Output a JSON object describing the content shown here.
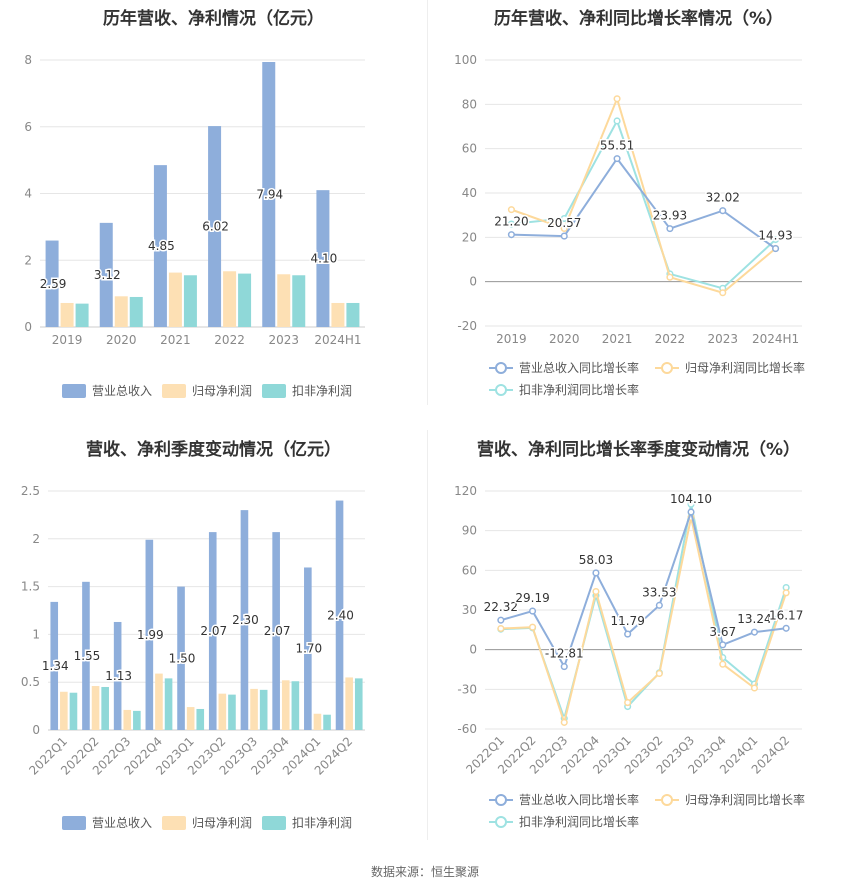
{
  "source": "数据来源：恒生聚源",
  "charts": [
    {
      "type": "bar",
      "title": "历年营收、净利情况（亿元）",
      "categories": [
        "2019",
        "2020",
        "2021",
        "2022",
        "2023",
        "2024H1"
      ],
      "ylim": [
        0,
        8
      ],
      "yticks": [
        0,
        2,
        4,
        6,
        8
      ],
      "series": [
        {
          "name": "营业总收入",
          "color": "#8eaedb",
          "values": [
            2.59,
            3.12,
            4.85,
            6.02,
            7.94,
            4.1
          ],
          "labels": [
            "2.59",
            "3.12",
            "4.85",
            "6.02",
            "7.94",
            "4.10"
          ]
        },
        {
          "name": "归母净利润",
          "color": "#fde0b4",
          "values": [
            0.72,
            0.92,
            1.63,
            1.67,
            1.58,
            0.72
          ]
        },
        {
          "name": "扣非净利润",
          "color": "#8fd8d8",
          "values": [
            0.7,
            0.9,
            1.55,
            1.6,
            1.55,
            0.72
          ]
        }
      ],
      "legend_position": "bottom"
    },
    {
      "type": "line",
      "title": "历年营收、净利同比增长率情况（%）",
      "categories": [
        "2019",
        "2020",
        "2021",
        "2022",
        "2023",
        "2024H1"
      ],
      "ylim": [
        -20,
        100
      ],
      "yticks": [
        -20,
        0,
        20,
        40,
        60,
        80,
        100
      ],
      "series": [
        {
          "name": "营业总收入同比增长率",
          "color": "#8eaedb",
          "values": [
            21.2,
            20.57,
            55.51,
            23.93,
            32.02,
            14.93
          ],
          "labels": [
            "21.20",
            "20.57",
            "55.51",
            "23.93",
            "32.02",
            "14.93"
          ]
        },
        {
          "name": "归母净利润同比增长率",
          "color": "#fdd99b",
          "values": [
            32.5,
            24.0,
            82.5,
            2.0,
            -5.0,
            15.0
          ]
        },
        {
          "name": "扣非净利润同比增长率",
          "color": "#9ee2e2",
          "values": [
            26.0,
            28.5,
            72.5,
            3.5,
            -3.0,
            19.0
          ]
        }
      ],
      "legend_position": "bottom"
    },
    {
      "type": "bar",
      "title": "营收、净利季度变动情况（亿元）",
      "categories": [
        "2022Q1",
        "2022Q2",
        "2022Q3",
        "2022Q4",
        "2023Q1",
        "2023Q2",
        "2023Q3",
        "2023Q4",
        "2024Q1",
        "2024Q2"
      ],
      "ylim": [
        0,
        2.5
      ],
      "yticks": [
        0,
        0.5,
        1,
        1.5,
        2,
        2.5
      ],
      "ytick_labels": [
        "0",
        "0.5",
        "1",
        "1.5",
        "2",
        "2.5"
      ],
      "series": [
        {
          "name": "营业总收入",
          "color": "#8eaedb",
          "values": [
            1.34,
            1.55,
            1.13,
            1.99,
            1.5,
            2.07,
            2.3,
            2.07,
            1.7,
            2.4
          ],
          "labels": [
            "1.34",
            "1.55",
            "1.13",
            "1.99",
            "1.50",
            "2.07",
            "2.30",
            "2.07",
            "1.70",
            "2.40"
          ]
        },
        {
          "name": "归母净利润",
          "color": "#fde0b4",
          "values": [
            0.4,
            0.46,
            0.21,
            0.59,
            0.24,
            0.38,
            0.43,
            0.52,
            0.17,
            0.55
          ]
        },
        {
          "name": "扣非净利润",
          "color": "#8fd8d8",
          "values": [
            0.39,
            0.45,
            0.2,
            0.54,
            0.22,
            0.37,
            0.42,
            0.51,
            0.16,
            0.54
          ]
        }
      ],
      "legend_position": "bottom"
    },
    {
      "type": "line",
      "title": "营收、净利同比增长率季度变动情况（%）",
      "categories": [
        "2022Q1",
        "2022Q2",
        "2022Q3",
        "2022Q4",
        "2023Q1",
        "2023Q2",
        "2023Q3",
        "2023Q4",
        "2024Q1",
        "2024Q2"
      ],
      "ylim": [
        -60,
        120
      ],
      "yticks": [
        -60,
        -30,
        0,
        30,
        60,
        90,
        120
      ],
      "series": [
        {
          "name": "营业总收入同比增长率",
          "color": "#8eaedb",
          "values": [
            22.32,
            29.19,
            -12.81,
            58.03,
            11.79,
            33.53,
            104.1,
            3.67,
            13.24,
            16.17
          ],
          "labels": [
            "22.32",
            "29.19",
            "-12.81",
            "58.03",
            "11.79",
            "33.53",
            "104.10",
            "3.67",
            "13.24",
            "16.17"
          ]
        },
        {
          "name": "归母净利润同比增长率",
          "color": "#fdd99b",
          "values": [
            16,
            17,
            -55,
            44,
            -40,
            -18,
            100,
            -11,
            -29,
            43
          ]
        },
        {
          "name": "扣非净利润同比增长率",
          "color": "#9ee2e2",
          "values": [
            15.5,
            16.5,
            -52,
            41,
            -43,
            -17.5,
            110,
            -6,
            -26,
            47
          ]
        }
      ],
      "legend_position": "bottom"
    }
  ]
}
